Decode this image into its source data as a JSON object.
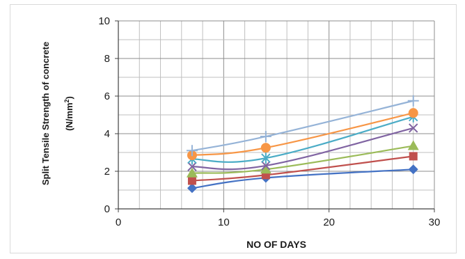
{
  "chart_data": {
    "type": "line",
    "title": "",
    "xlabel": "NO OF DAYS",
    "ylabel_line1": "Split Tensile Strength of concrete",
    "ylabel_line2_prefix": "(N/mm",
    "ylabel_line2_sup": "2",
    "ylabel_line2_suffix": ")",
    "xlim": [
      0,
      30
    ],
    "ylim": [
      0,
      10
    ],
    "x_ticks": [
      "0",
      "10",
      "20",
      "30"
    ],
    "y_ticks": [
      "0",
      "2",
      "4",
      "6",
      "8",
      "10"
    ],
    "grid": true,
    "legend": "none",
    "x": [
      7,
      14,
      28
    ],
    "series": [
      {
        "values": [
          1.1,
          1.65,
          2.1
        ],
        "color": "#4472c4",
        "marker": "diamond"
      },
      {
        "values": [
          1.5,
          1.8,
          2.8
        ],
        "color": "#c0504d",
        "marker": "square"
      },
      {
        "values": [
          1.9,
          2.1,
          3.35
        ],
        "color": "#9bbb59",
        "marker": "triangle"
      },
      {
        "values": [
          2.25,
          2.3,
          4.3
        ],
        "color": "#8064a2",
        "marker": "x"
      },
      {
        "values": [
          2.65,
          2.7,
          4.9
        ],
        "color": "#4bacc6",
        "marker": "star"
      },
      {
        "values": [
          2.85,
          3.25,
          5.1
        ],
        "color": "#f79646",
        "marker": "circle"
      },
      {
        "values": [
          3.1,
          3.85,
          5.75
        ],
        "color": "#95b3d7",
        "marker": "plus"
      }
    ]
  }
}
